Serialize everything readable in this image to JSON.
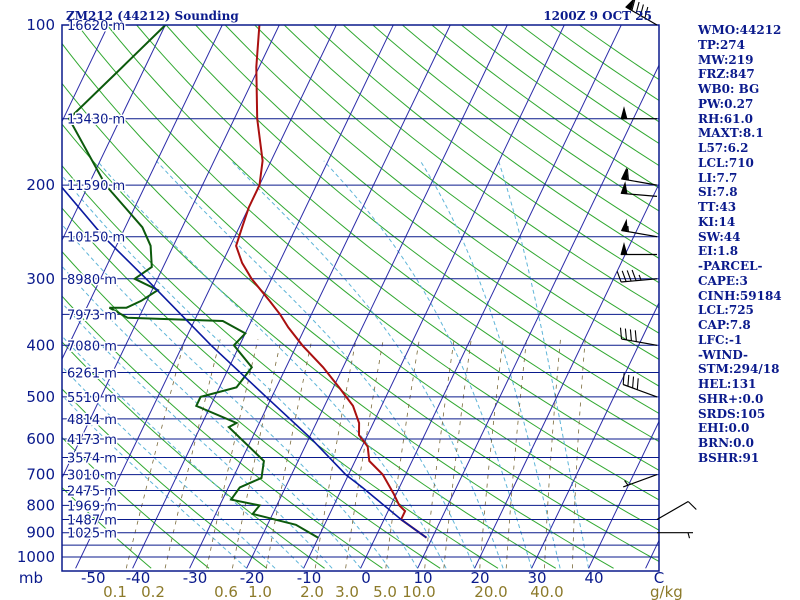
{
  "header": {
    "station": "ZM212 (44212) Sounding",
    "time": "1200Z  9 OCT 25"
  },
  "indices": [
    "WMO:44212",
    "TP:274",
    "MW:219",
    "FRZ:847",
    "WB0: BG",
    "PW:0.27",
    "RH:61.0",
    "MAXT:8.1",
    "L57:6.2",
    "LCL:710",
    "LI:7.7",
    "SI:7.8",
    "TT:43",
    "KI:14",
    "SW:44",
    "EI:1.8",
    "-PARCEL-",
    "CAPE:3",
    "CINH:59184",
    "LCL:725",
    "CAP:7.8",
    "LFC:-1",
    "-WIND-",
    "STM:294/18",
    "HEL:131",
    "SHR+:0.0",
    "SRDS:105",
    "EHI:0.0",
    "BRN:0.0",
    "BSHR:91"
  ],
  "colors": {
    "frame": "#0a1a8c",
    "isobar": "#0a1a8c",
    "isotherm": "#2b2ba8",
    "dry_adiabat": "#31a831",
    "moist_adiabat": "#5fb5d8",
    "mixing_ratio": "#7a6a3a",
    "temperature": "#aa1010",
    "dewpoint": "#0c5a0c",
    "parcel": "#0a1aa0",
    "wind_barb": "#000000"
  },
  "chart_data": {
    "type": "line",
    "diagram": "skew-T log-P",
    "pressure_levels": [
      100,
      200,
      300,
      400,
      500,
      600,
      700,
      800,
      900,
      1000
    ],
    "pressure_unit": "mb",
    "temperature_ticks": [
      -50,
      -40,
      -30,
      -20,
      -10,
      0,
      10,
      20,
      30,
      40
    ],
    "temperature_unit": "C",
    "mixing_ratio_labels": [
      "0.1",
      "0.2",
      "0.6",
      "1.0",
      "2.0",
      "3.0",
      "5.0",
      "10.0",
      "20.0",
      "40.0"
    ],
    "mixing_ratio_unit": "g/kg",
    "height_labels": [
      {
        "p": 100,
        "label": "16620 m"
      },
      {
        "p": 150,
        "label": "13430 m"
      },
      {
        "p": 200,
        "label": "11590 m"
      },
      {
        "p": 250,
        "label": "10150 m"
      },
      {
        "p": 300,
        "label": "8980 m"
      },
      {
        "p": 350,
        "label": "7973 m"
      },
      {
        "p": 400,
        "label": "7080 m"
      },
      {
        "p": 450,
        "label": "6261 m"
      },
      {
        "p": 500,
        "label": "5510 m"
      },
      {
        "p": 550,
        "label": "4814 m"
      },
      {
        "p": 600,
        "label": "4173 m"
      },
      {
        "p": 650,
        "label": "3574 m"
      },
      {
        "p": 700,
        "label": "3010 m"
      },
      {
        "p": 750,
        "label": "2475 m"
      },
      {
        "p": 800,
        "label": "1969 m"
      },
      {
        "p": 850,
        "label": "1487 m"
      },
      {
        "p": 900,
        "label": "1025 m"
      }
    ],
    "series": [
      {
        "key": "temperature",
        "points": [
          [
            920,
            9.0
          ],
          [
            850,
            3.0
          ],
          [
            820,
            3.0
          ],
          [
            800,
            1.5
          ],
          [
            760,
            -0.5
          ],
          [
            700,
            -4.0
          ],
          [
            660,
            -7.5
          ],
          [
            620,
            -9.0
          ],
          [
            590,
            -11.5
          ],
          [
            560,
            -12.5
          ],
          [
            520,
            -15.0
          ],
          [
            480,
            -19.0
          ],
          [
            440,
            -23.5
          ],
          [
            400,
            -29.0
          ],
          [
            370,
            -33.0
          ],
          [
            350,
            -35.5
          ],
          [
            330,
            -38.5
          ],
          [
            300,
            -43.5
          ],
          [
            280,
            -46.5
          ],
          [
            260,
            -49.0
          ],
          [
            240,
            -49.5
          ],
          [
            220,
            -50.0
          ],
          [
            200,
            -50.0
          ],
          [
            180,
            -51.5
          ],
          [
            150,
            -56.0
          ],
          [
            120,
            -60.5
          ],
          [
            100,
            -63.5
          ]
        ]
      },
      {
        "key": "dewpoint",
        "points": [
          [
            920,
            -10.0
          ],
          [
            870,
            -15.0
          ],
          [
            830,
            -23.5
          ],
          [
            800,
            -23.0
          ],
          [
            780,
            -28.5
          ],
          [
            740,
            -28.0
          ],
          [
            710,
            -25.0
          ],
          [
            660,
            -26.0
          ],
          [
            570,
            -35.0
          ],
          [
            560,
            -34.0
          ],
          [
            520,
            -42.5
          ],
          [
            500,
            -42.5
          ],
          [
            480,
            -37.0
          ],
          [
            440,
            -36.0
          ],
          [
            400,
            -41.0
          ],
          [
            380,
            -40.0
          ],
          [
            360,
            -45.0
          ],
          [
            355,
            -62.0
          ],
          [
            340,
            -66.0
          ],
          [
            340,
            -63.0
          ],
          [
            330,
            -61.0
          ],
          [
            315,
            -59.0
          ],
          [
            300,
            -64.0
          ],
          [
            285,
            -62.0
          ],
          [
            260,
            -64.0
          ],
          [
            240,
            -67.0
          ],
          [
            200,
            -77.0
          ],
          [
            150,
            -89.0
          ],
          [
            120,
            -84.0
          ],
          [
            100,
            -80.0
          ]
        ]
      },
      {
        "key": "parcel",
        "points": [
          [
            920,
            9.0
          ],
          [
            850,
            3.0
          ],
          [
            740,
            -6.5
          ],
          [
            700,
            -10.5
          ],
          [
            600,
            -19.5
          ],
          [
            500,
            -31.0
          ],
          [
            400,
            -45.0
          ],
          [
            300,
            -62.0
          ],
          [
            250,
            -73.0
          ],
          [
            200,
            -85.0
          ],
          [
            150,
            -101.0
          ],
          [
            120,
            -113.0
          ],
          [
            110,
            -117.0
          ]
        ]
      }
    ],
    "wind_barbs": [
      {
        "p": 100,
        "dir": 300,
        "spd": 90
      },
      {
        "p": 150,
        "dir": 270,
        "spd": 50
      },
      {
        "p": 200,
        "dir": 280,
        "spd": 60
      },
      {
        "p": 210,
        "dir": 275,
        "spd": 50
      },
      {
        "p": 250,
        "dir": 280,
        "spd": 55
      },
      {
        "p": 270,
        "dir": 270,
        "spd": 50
      },
      {
        "p": 300,
        "dir": 265,
        "spd": 45
      },
      {
        "p": 400,
        "dir": 280,
        "spd": 40
      },
      {
        "p": 500,
        "dir": 290,
        "spd": 40
      },
      {
        "p": 700,
        "dir": 250,
        "spd": 5
      },
      {
        "p": 850,
        "dir": 60,
        "spd": 10
      },
      {
        "p": 900,
        "dir": 90,
        "spd": 5
      }
    ]
  }
}
